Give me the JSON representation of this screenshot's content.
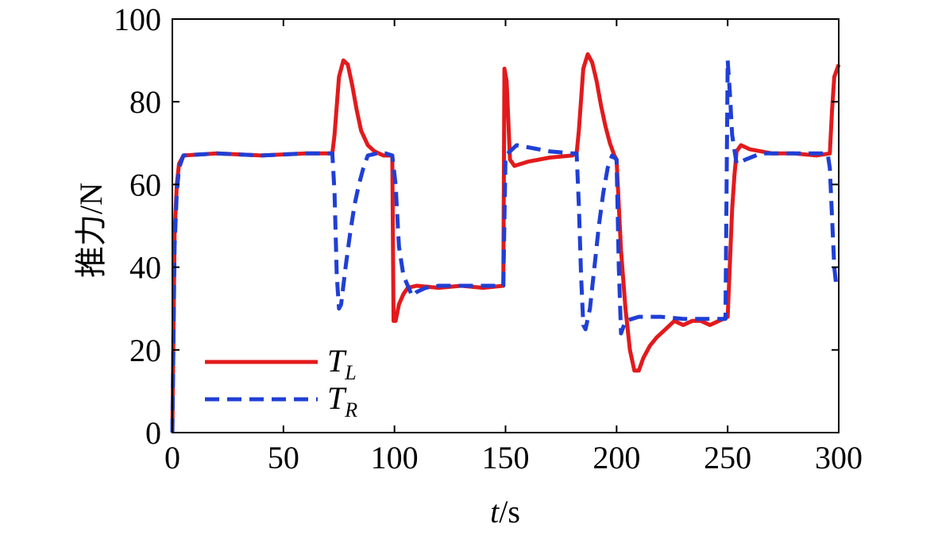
{
  "chart_data": {
    "type": "line",
    "title": "",
    "xlabel_var": "t",
    "xlabel_unit": "/s",
    "ylabel": "推力/N",
    "xlim": [
      0,
      300
    ],
    "ylim": [
      0,
      100
    ],
    "xticks": [
      0,
      50,
      100,
      150,
      200,
      250,
      300
    ],
    "yticks": [
      0,
      20,
      40,
      60,
      80,
      100
    ],
    "grid": false,
    "legend_position": "bottom-left",
    "series": [
      {
        "name_main": "T",
        "name_sub": "L",
        "color": "#e31a1c",
        "dash": "solid",
        "points": [
          [
            0,
            0
          ],
          [
            1,
            48
          ],
          [
            2,
            60
          ],
          [
            3,
            65
          ],
          [
            5,
            67
          ],
          [
            20,
            67.5
          ],
          [
            40,
            67
          ],
          [
            60,
            67.5
          ],
          [
            72,
            67.5
          ],
          [
            73,
            72
          ],
          [
            75,
            86
          ],
          [
            77,
            90
          ],
          [
            79,
            89
          ],
          [
            81,
            84
          ],
          [
            83,
            78
          ],
          [
            85,
            73
          ],
          [
            88,
            69.5
          ],
          [
            91,
            68
          ],
          [
            95,
            67
          ],
          [
            99,
            67
          ],
          [
            99.6,
            27
          ],
          [
            100.5,
            27
          ],
          [
            102,
            31
          ],
          [
            104,
            33.5
          ],
          [
            106,
            35
          ],
          [
            110,
            35.5
          ],
          [
            120,
            35
          ],
          [
            130,
            35.5
          ],
          [
            140,
            35
          ],
          [
            149,
            35.5
          ],
          [
            149.5,
            88
          ],
          [
            150.5,
            85
          ],
          [
            152,
            66
          ],
          [
            154,
            64.5
          ],
          [
            160,
            65.5
          ],
          [
            170,
            66.5
          ],
          [
            180,
            67
          ],
          [
            182,
            67.5
          ],
          [
            183,
            73
          ],
          [
            185,
            88
          ],
          [
            187,
            91.5
          ],
          [
            189,
            89.5
          ],
          [
            191,
            85
          ],
          [
            193,
            79
          ],
          [
            195,
            74
          ],
          [
            197,
            70
          ],
          [
            199,
            67
          ],
          [
            200,
            66
          ],
          [
            202,
            44
          ],
          [
            204,
            30
          ],
          [
            206,
            20
          ],
          [
            208,
            15
          ],
          [
            210,
            15
          ],
          [
            212,
            18
          ],
          [
            215,
            21
          ],
          [
            218,
            23
          ],
          [
            222,
            25
          ],
          [
            226,
            27
          ],
          [
            230,
            26
          ],
          [
            234,
            27
          ],
          [
            238,
            27
          ],
          [
            242,
            26
          ],
          [
            246,
            27
          ],
          [
            250,
            28
          ],
          [
            252,
            54
          ],
          [
            253,
            62
          ],
          [
            254,
            68
          ],
          [
            256,
            69.5
          ],
          [
            260,
            68.5
          ],
          [
            270,
            67.5
          ],
          [
            280,
            67.5
          ],
          [
            290,
            67
          ],
          [
            296,
            67.5
          ],
          [
            297,
            78
          ],
          [
            298,
            86
          ],
          [
            300,
            89
          ]
        ]
      },
      {
        "name_main": "T",
        "name_sub": "R",
        "color": "#1f3fd6",
        "dash": "dashed",
        "points": [
          [
            0,
            0
          ],
          [
            1,
            45
          ],
          [
            2,
            58
          ],
          [
            3,
            64
          ],
          [
            5,
            67
          ],
          [
            20,
            67.5
          ],
          [
            40,
            67
          ],
          [
            60,
            67.5
          ],
          [
            72,
            67.5
          ],
          [
            73,
            58
          ],
          [
            74,
            38
          ],
          [
            75,
            30
          ],
          [
            76,
            31
          ],
          [
            78,
            40
          ],
          [
            80,
            48
          ],
          [
            82,
            55
          ],
          [
            84,
            60
          ],
          [
            86,
            64
          ],
          [
            88,
            67
          ],
          [
            92,
            67.5
          ],
          [
            96,
            67.5
          ],
          [
            99,
            67
          ],
          [
            100.5,
            60
          ],
          [
            102,
            45
          ],
          [
            104,
            38
          ],
          [
            106,
            35.5
          ],
          [
            108,
            33
          ],
          [
            110,
            34
          ],
          [
            114,
            35
          ],
          [
            120,
            35.5
          ],
          [
            130,
            35.5
          ],
          [
            140,
            35.5
          ],
          [
            149,
            35.5
          ],
          [
            150,
            67
          ],
          [
            152,
            68
          ],
          [
            155,
            69.5
          ],
          [
            160,
            69
          ],
          [
            170,
            68
          ],
          [
            180,
            67.5
          ],
          [
            182,
            67.5
          ],
          [
            183,
            55
          ],
          [
            184,
            38
          ],
          [
            185,
            26
          ],
          [
            186,
            25
          ],
          [
            188,
            30
          ],
          [
            190,
            40
          ],
          [
            192,
            50
          ],
          [
            194,
            58
          ],
          [
            196,
            64
          ],
          [
            198,
            67
          ],
          [
            200,
            66
          ],
          [
            201,
            40
          ],
          [
            202,
            24
          ],
          [
            204,
            27
          ],
          [
            210,
            28
          ],
          [
            220,
            28
          ],
          [
            230,
            27.5
          ],
          [
            240,
            27.5
          ],
          [
            249,
            27.5
          ],
          [
            250,
            90
          ],
          [
            251,
            82
          ],
          [
            252,
            72
          ],
          [
            254,
            65
          ],
          [
            258,
            66
          ],
          [
            265,
            67.5
          ],
          [
            275,
            67.5
          ],
          [
            285,
            67.5
          ],
          [
            295,
            67.5
          ],
          [
            296,
            64
          ],
          [
            297,
            52
          ],
          [
            298,
            40
          ],
          [
            299,
            35
          ]
        ]
      }
    ]
  }
}
